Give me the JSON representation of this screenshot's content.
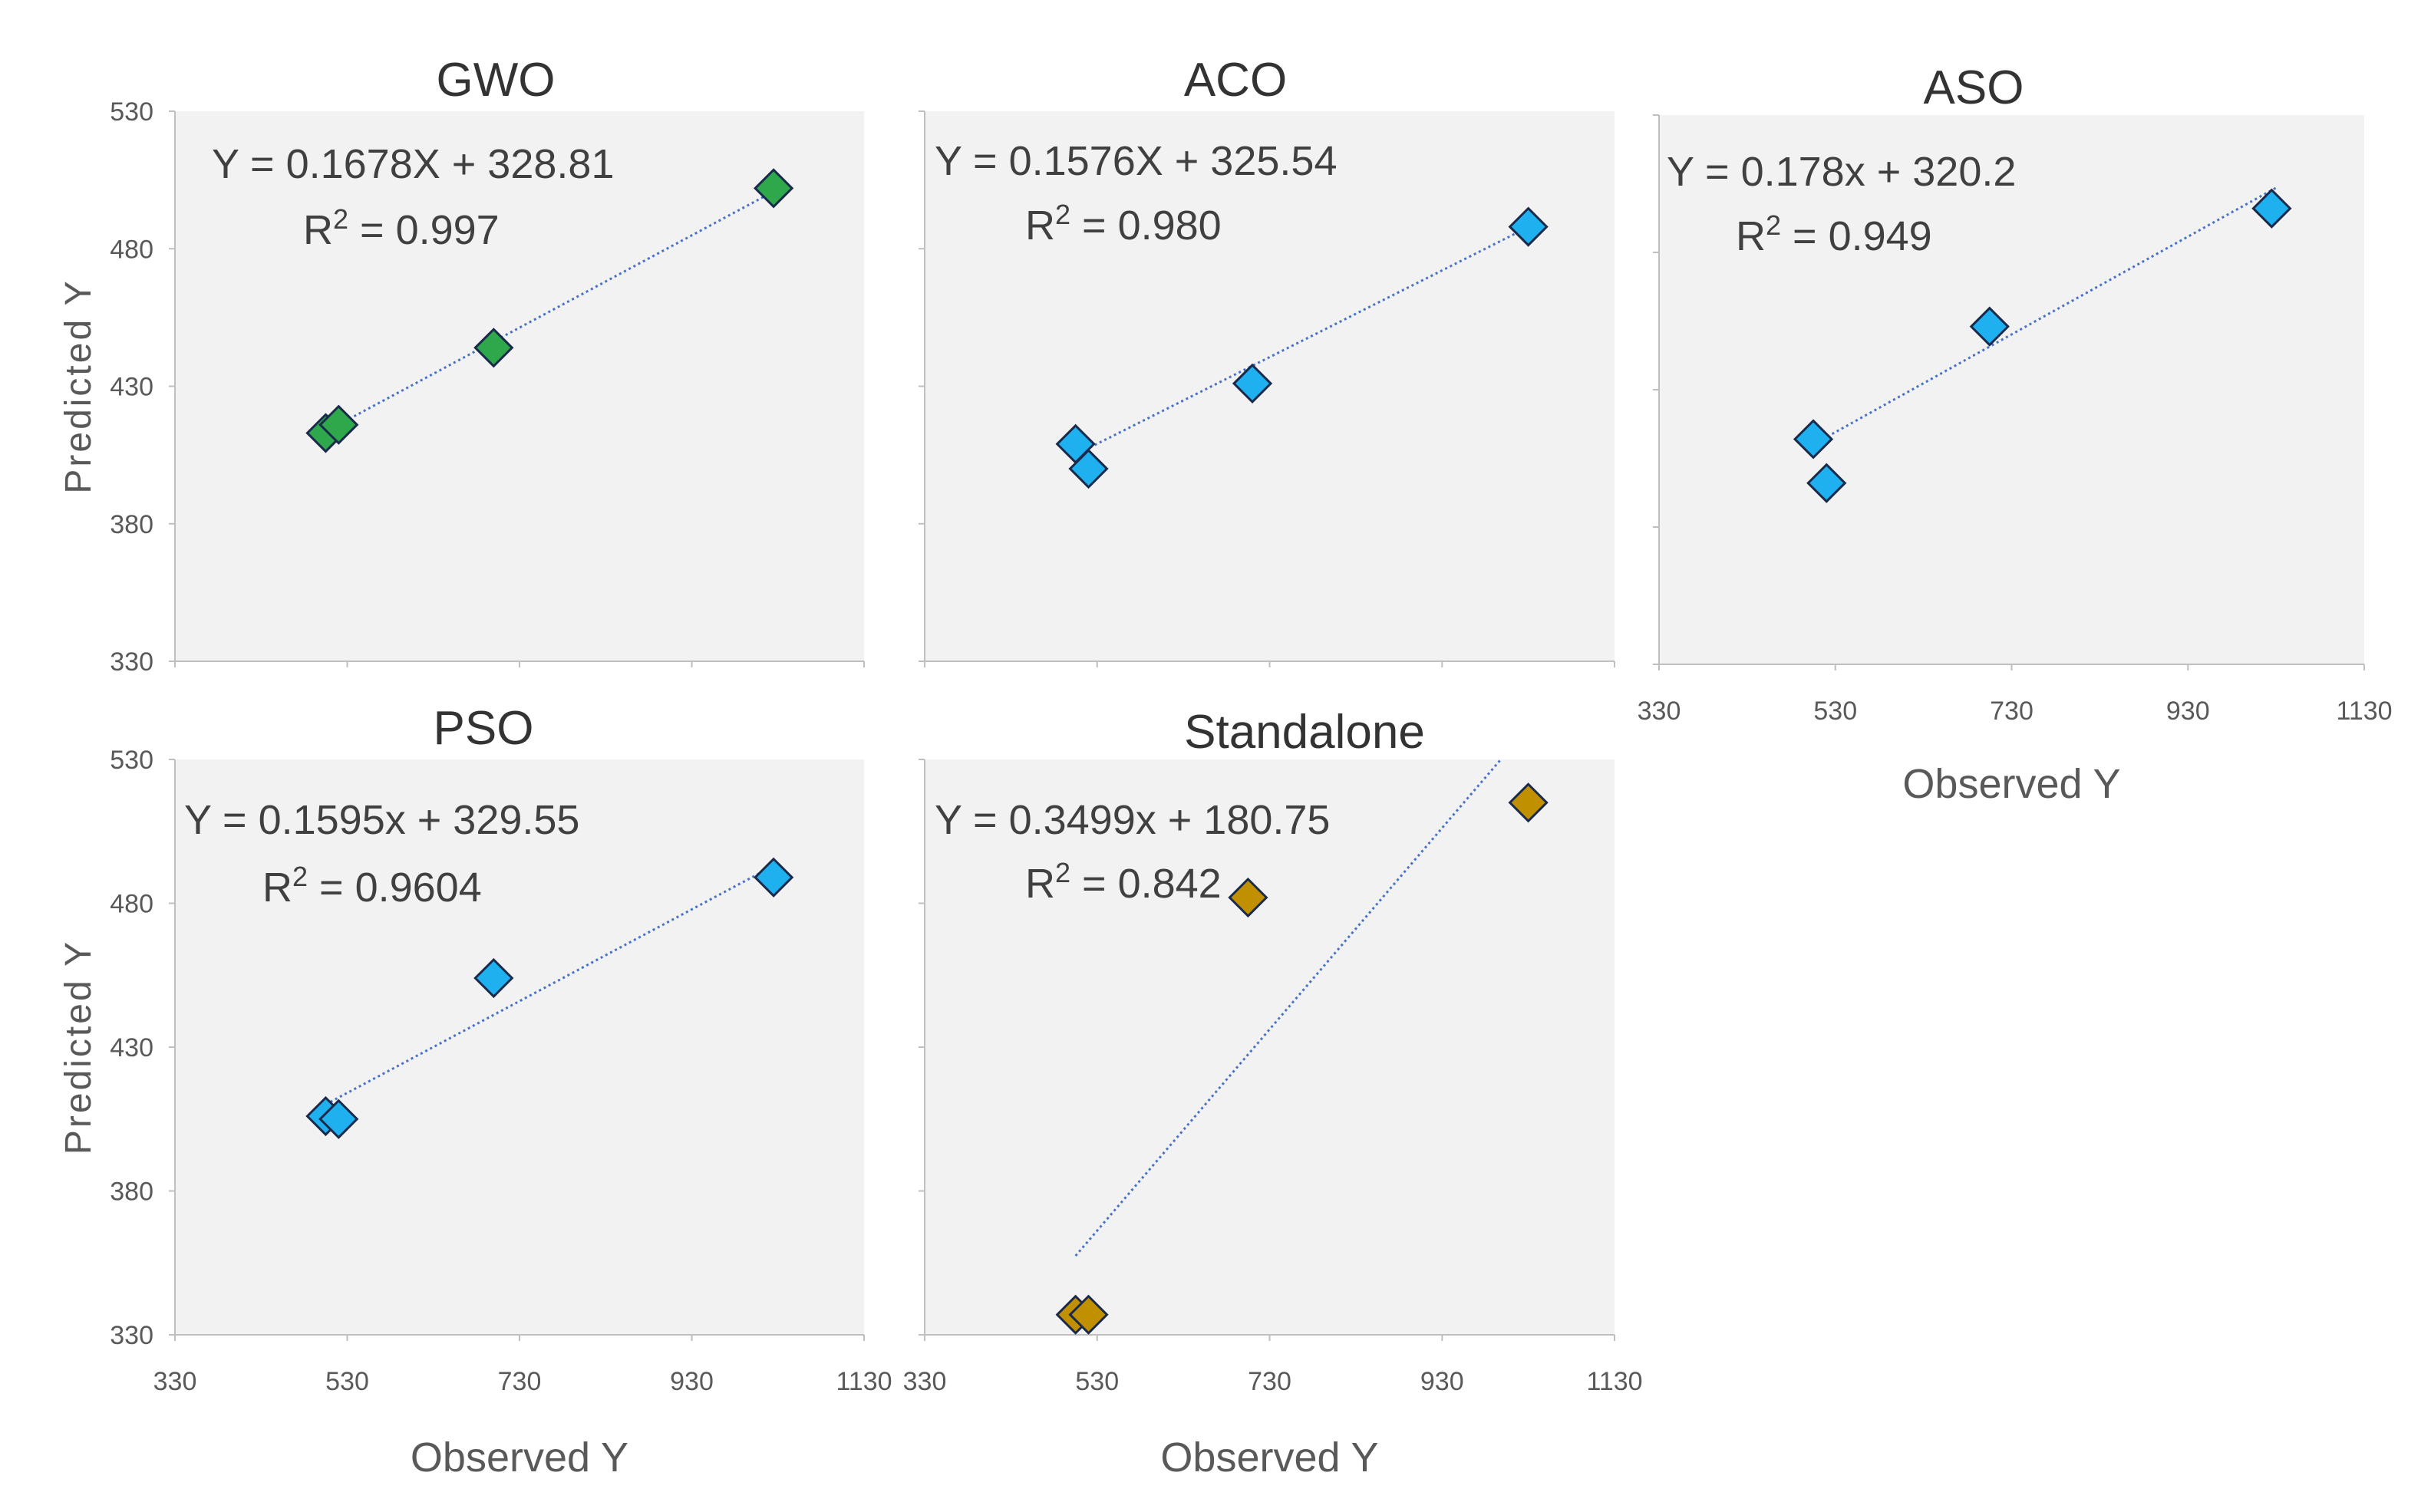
{
  "chart_data": [
    {
      "type": "scatter",
      "title": "GWO",
      "xlabel": "",
      "ylabel": "Predicted Y",
      "xlim": [
        330,
        1130
      ],
      "ylim": [
        330,
        530
      ],
      "x_ticks": [],
      "y_ticks": [
        "330",
        "380",
        "430",
        "480",
        "530"
      ],
      "equation": "Y = 0.1678X + 328.81",
      "r2_label": "R",
      "r2_value": " = 0.997",
      "marker_color": "#2ea84a",
      "trendline": {
        "slope": 0.1678,
        "intercept": 328.81,
        "x_range": [
          505,
          1030
        ]
      },
      "points": [
        {
          "x": 505,
          "y": 413
        },
        {
          "x": 520,
          "y": 416
        },
        {
          "x": 700,
          "y": 444
        },
        {
          "x": 1025,
          "y": 502
        }
      ]
    },
    {
      "type": "scatter",
      "title": "ACO",
      "xlabel": "",
      "ylabel": "",
      "xlim": [
        330,
        1130
      ],
      "ylim": [
        330,
        530
      ],
      "x_ticks": [],
      "y_ticks": [],
      "equation": "Y = 0.1576X + 325.54",
      "r2_label": "R",
      "r2_value": " = 0.980",
      "marker_color": "#1fb0ef",
      "trendline": {
        "slope": 0.1576,
        "intercept": 325.54,
        "x_range": [
          505,
          1030
        ]
      },
      "points": [
        {
          "x": 505,
          "y": 409
        },
        {
          "x": 520,
          "y": 400
        },
        {
          "x": 710,
          "y": 431
        },
        {
          "x": 1030,
          "y": 488
        }
      ]
    },
    {
      "type": "scatter",
      "title": "ASO",
      "xlabel": "Observed Y",
      "ylabel": "",
      "xlim": [
        330,
        1130
      ],
      "ylim": [
        330,
        530
      ],
      "x_ticks": [
        "330",
        "530",
        "730",
        "930",
        "1130"
      ],
      "y_ticks": [],
      "equation": "Y = 0.178x + 320.2",
      "r2_label": "R",
      "r2_value": " = 0.949",
      "marker_color": "#1fb0ef",
      "trendline": {
        "slope": 0.178,
        "intercept": 320.2,
        "x_range": [
          505,
          1030
        ]
      },
      "points": [
        {
          "x": 505,
          "y": 412
        },
        {
          "x": 520,
          "y": 396
        },
        {
          "x": 705,
          "y": 453
        },
        {
          "x": 1025,
          "y": 496
        }
      ]
    },
    {
      "type": "scatter",
      "title": "PSO",
      "xlabel": "Observed Y",
      "ylabel": "Predicted Y",
      "xlim": [
        330,
        1130
      ],
      "ylim": [
        330,
        530
      ],
      "x_ticks": [
        "330",
        "530",
        "730",
        "930",
        "1130"
      ],
      "y_ticks": [
        "330",
        "380",
        "430",
        "480",
        "530"
      ],
      "equation": "Y = 0.1595x + 329.55",
      "r2_label": "R",
      "r2_value": " = 0.9604",
      "marker_color": "#1fb0ef",
      "trendline": {
        "slope": 0.1595,
        "intercept": 329.55,
        "x_range": [
          505,
          1030
        ]
      },
      "points": [
        {
          "x": 505,
          "y": 406
        },
        {
          "x": 520,
          "y": 405
        },
        {
          "x": 700,
          "y": 454
        },
        {
          "x": 1025,
          "y": 489
        }
      ]
    },
    {
      "type": "scatter",
      "title": "Standalone",
      "xlabel": "Observed Y",
      "ylabel": "",
      "xlim": [
        330,
        1130
      ],
      "ylim": [
        330,
        530
      ],
      "x_ticks": [
        "330",
        "530",
        "730",
        "930",
        "1130"
      ],
      "y_ticks": [],
      "equation": "Y = 0.3499x + 180.75",
      "r2_label": "R",
      "r2_value": " = 0.842",
      "marker_color": "#c09000",
      "trendline": {
        "slope": 0.3499,
        "intercept": 180.75,
        "x_range": [
          505,
          1030
        ]
      },
      "points": [
        {
          "x": 505,
          "y": 337
        },
        {
          "x": 520,
          "y": 337
        },
        {
          "x": 705,
          "y": 482
        },
        {
          "x": 1030,
          "y": 515
        }
      ]
    }
  ]
}
